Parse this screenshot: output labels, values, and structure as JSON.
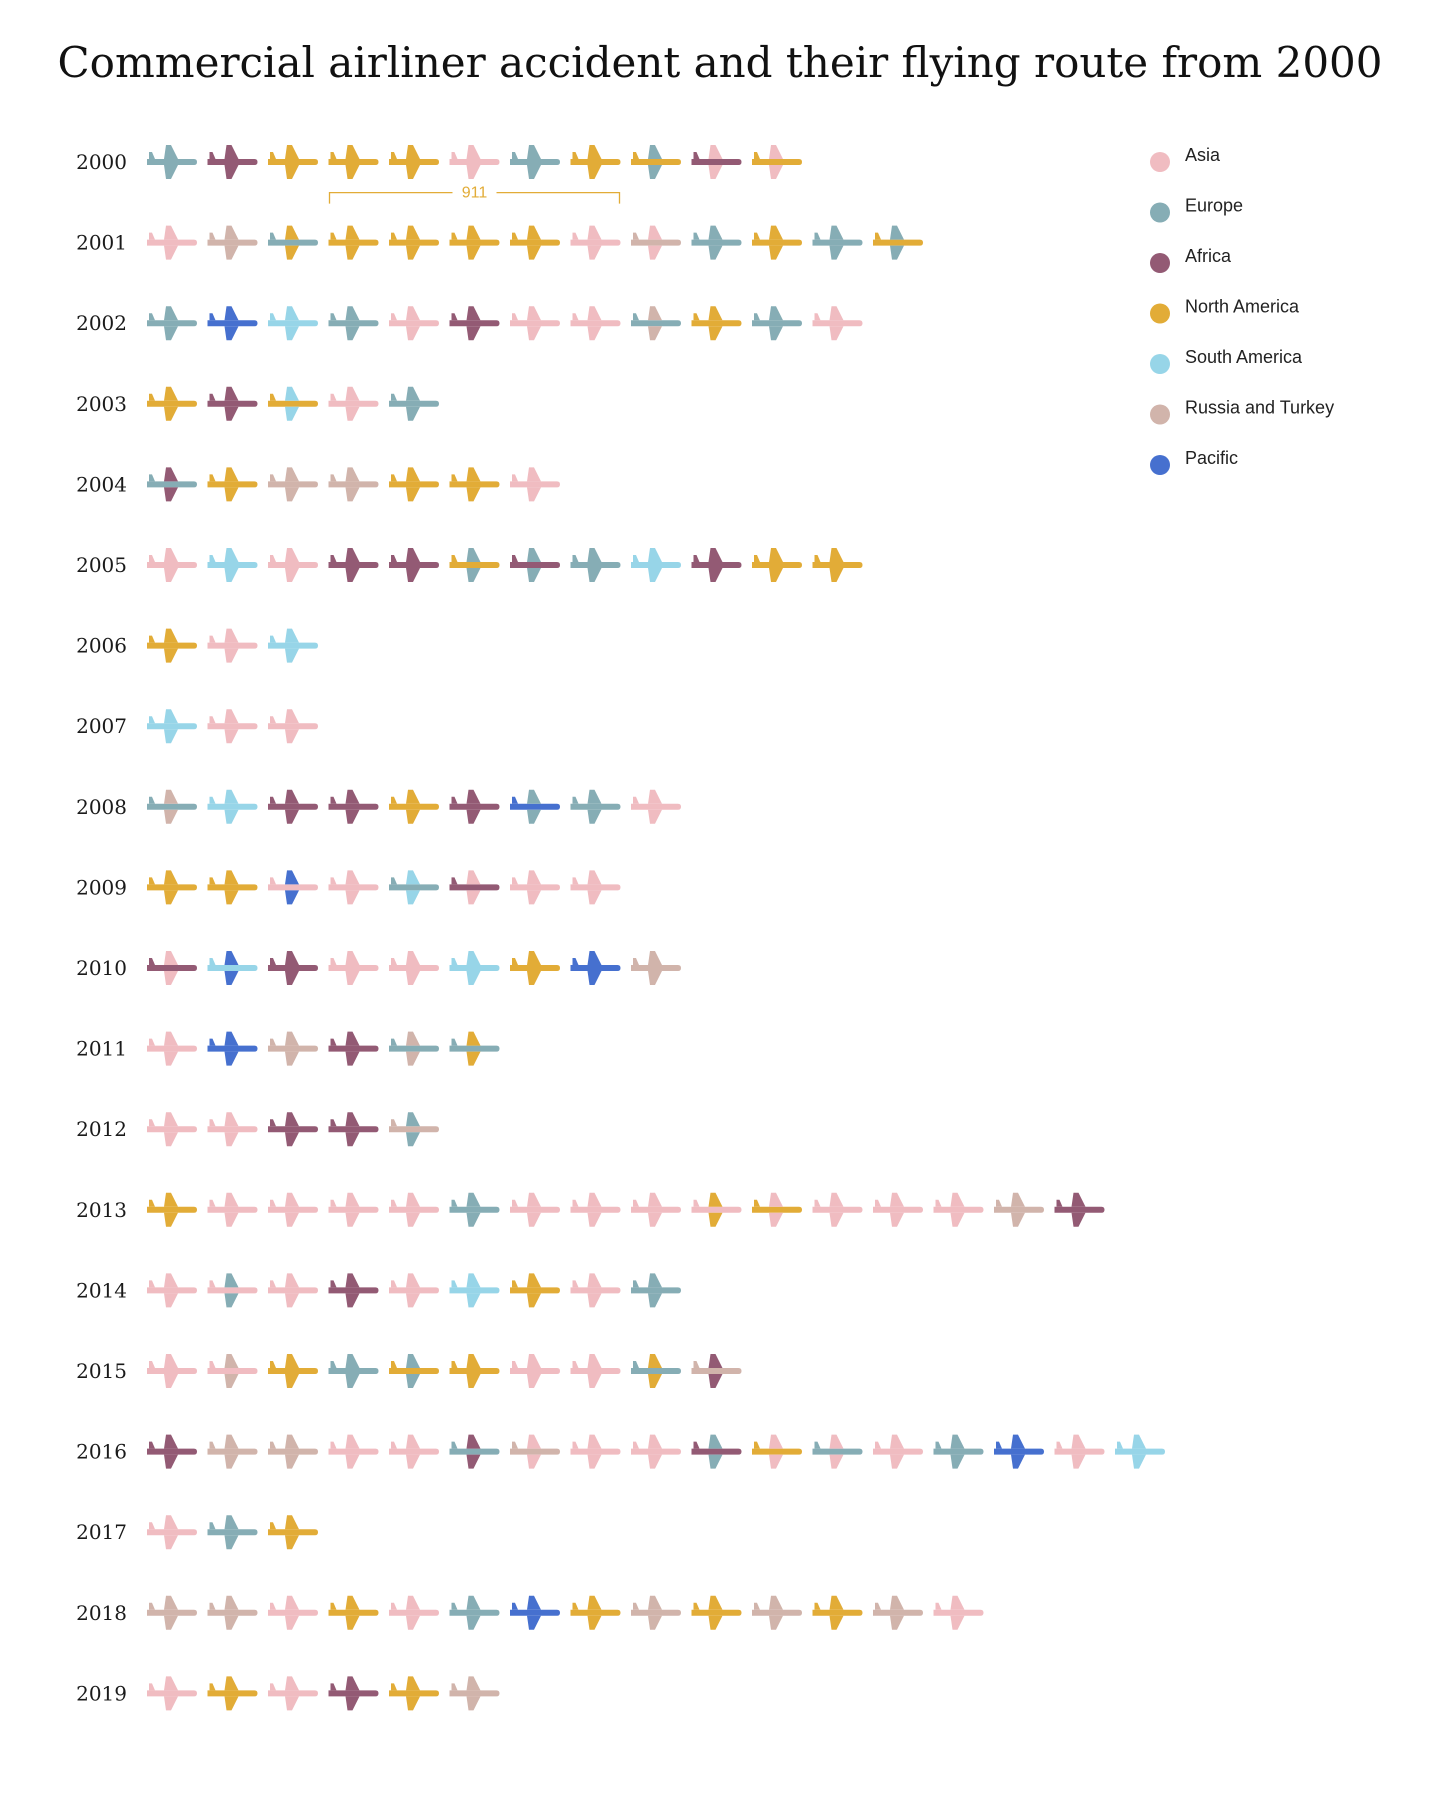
{
  "chart_data": {
    "type": "pictograph",
    "title": "Commercial airliner accident and their flying route from 2000",
    "legend": [
      {
        "key": "A",
        "label": "Asia",
        "color": "#f0bcc1"
      },
      {
        "key": "E",
        "label": "Europe",
        "color": "#86adb5"
      },
      {
        "key": "F",
        "label": "Africa",
        "color": "#935a74"
      },
      {
        "key": "N",
        "label": "North America",
        "color": "#e2ac37"
      },
      {
        "key": "S",
        "label": "South America",
        "color": "#97d5e8"
      },
      {
        "key": "R",
        "label": "Russia and Turkey",
        "color": "#d1b4ab"
      },
      {
        "key": "P",
        "label": "Pacific",
        "color": "#4670cf"
      }
    ],
    "annotation": {
      "year": "2001",
      "label": "911",
      "color": "#e2ac37",
      "first_flight_index": 3,
      "last_flight_index": 7
    },
    "rows": [
      {
        "year": "2000",
        "flights": [
          "E",
          "F",
          "N",
          "N",
          "N",
          "A",
          "E",
          "N",
          "E-N",
          "A-F",
          "A-N"
        ]
      },
      {
        "year": "2001",
        "flights": [
          "A",
          "R",
          "N-E",
          "N",
          "N",
          "N",
          "N",
          "A",
          "A-R",
          "E",
          "N",
          "E",
          "E-N"
        ]
      },
      {
        "year": "2002",
        "flights": [
          "E",
          "P",
          "S",
          "E",
          "A",
          "F",
          "A",
          "A",
          "R-E",
          "N",
          "E",
          "A"
        ]
      },
      {
        "year": "2003",
        "flights": [
          "N",
          "F",
          "S-N",
          "A",
          "E"
        ]
      },
      {
        "year": "2004",
        "flights": [
          "F-E",
          "N",
          "R",
          "R",
          "N",
          "N",
          "A"
        ]
      },
      {
        "year": "2005",
        "flights": [
          "A",
          "S",
          "A",
          "F",
          "F",
          "E-N",
          "E-F",
          "E",
          "S",
          "F",
          "N",
          "N"
        ]
      },
      {
        "year": "2006",
        "flights": [
          "N",
          "A",
          "S"
        ]
      },
      {
        "year": "2007",
        "flights": [
          "S",
          "A",
          "A"
        ]
      },
      {
        "year": "2008",
        "flights": [
          "R-E",
          "S",
          "F",
          "F",
          "N",
          "F",
          "E-P",
          "E",
          "A"
        ]
      },
      {
        "year": "2009",
        "flights": [
          "N",
          "N",
          "P-A",
          "A",
          "S-E",
          "A-F",
          "A",
          "A"
        ]
      },
      {
        "year": "2010",
        "flights": [
          "A-F",
          "P-S",
          "F",
          "A",
          "A",
          "S",
          "N",
          "P",
          "R"
        ]
      },
      {
        "year": "2011",
        "flights": [
          "A",
          "P",
          "R",
          "F",
          "R-E",
          "N-E"
        ]
      },
      {
        "year": "2012",
        "flights": [
          "A",
          "A",
          "F",
          "F",
          "E-R"
        ]
      },
      {
        "year": "2013",
        "flights": [
          "N",
          "A",
          "A",
          "A",
          "A",
          "E",
          "A",
          "A",
          "A",
          "N-A",
          "A-N",
          "A",
          "A",
          "A",
          "R",
          "F"
        ]
      },
      {
        "year": "2014",
        "flights": [
          "A",
          "E-A",
          "A",
          "F",
          "A",
          "S",
          "N",
          "A",
          "E"
        ]
      },
      {
        "year": "2015",
        "flights": [
          "A",
          "R-A",
          "N",
          "E",
          "E-N",
          "N",
          "A",
          "A",
          "N-E",
          "F-R"
        ]
      },
      {
        "year": "2016",
        "flights": [
          "F",
          "R",
          "R",
          "A",
          "A",
          "F-E",
          "A-R",
          "A",
          "A",
          "E-F",
          "A-N",
          "A-E",
          "A",
          "E",
          "P",
          "A",
          "S"
        ]
      },
      {
        "year": "2017",
        "flights": [
          "A",
          "E",
          "N"
        ]
      },
      {
        "year": "2018",
        "flights": [
          "R",
          "R",
          "A",
          "N",
          "A",
          "E",
          "P",
          "N",
          "R",
          "N",
          "R",
          "N",
          "R",
          "A"
        ]
      },
      {
        "year": "2019",
        "flights": [
          "A",
          "N",
          "A",
          "F",
          "N",
          "R"
        ]
      }
    ]
  }
}
